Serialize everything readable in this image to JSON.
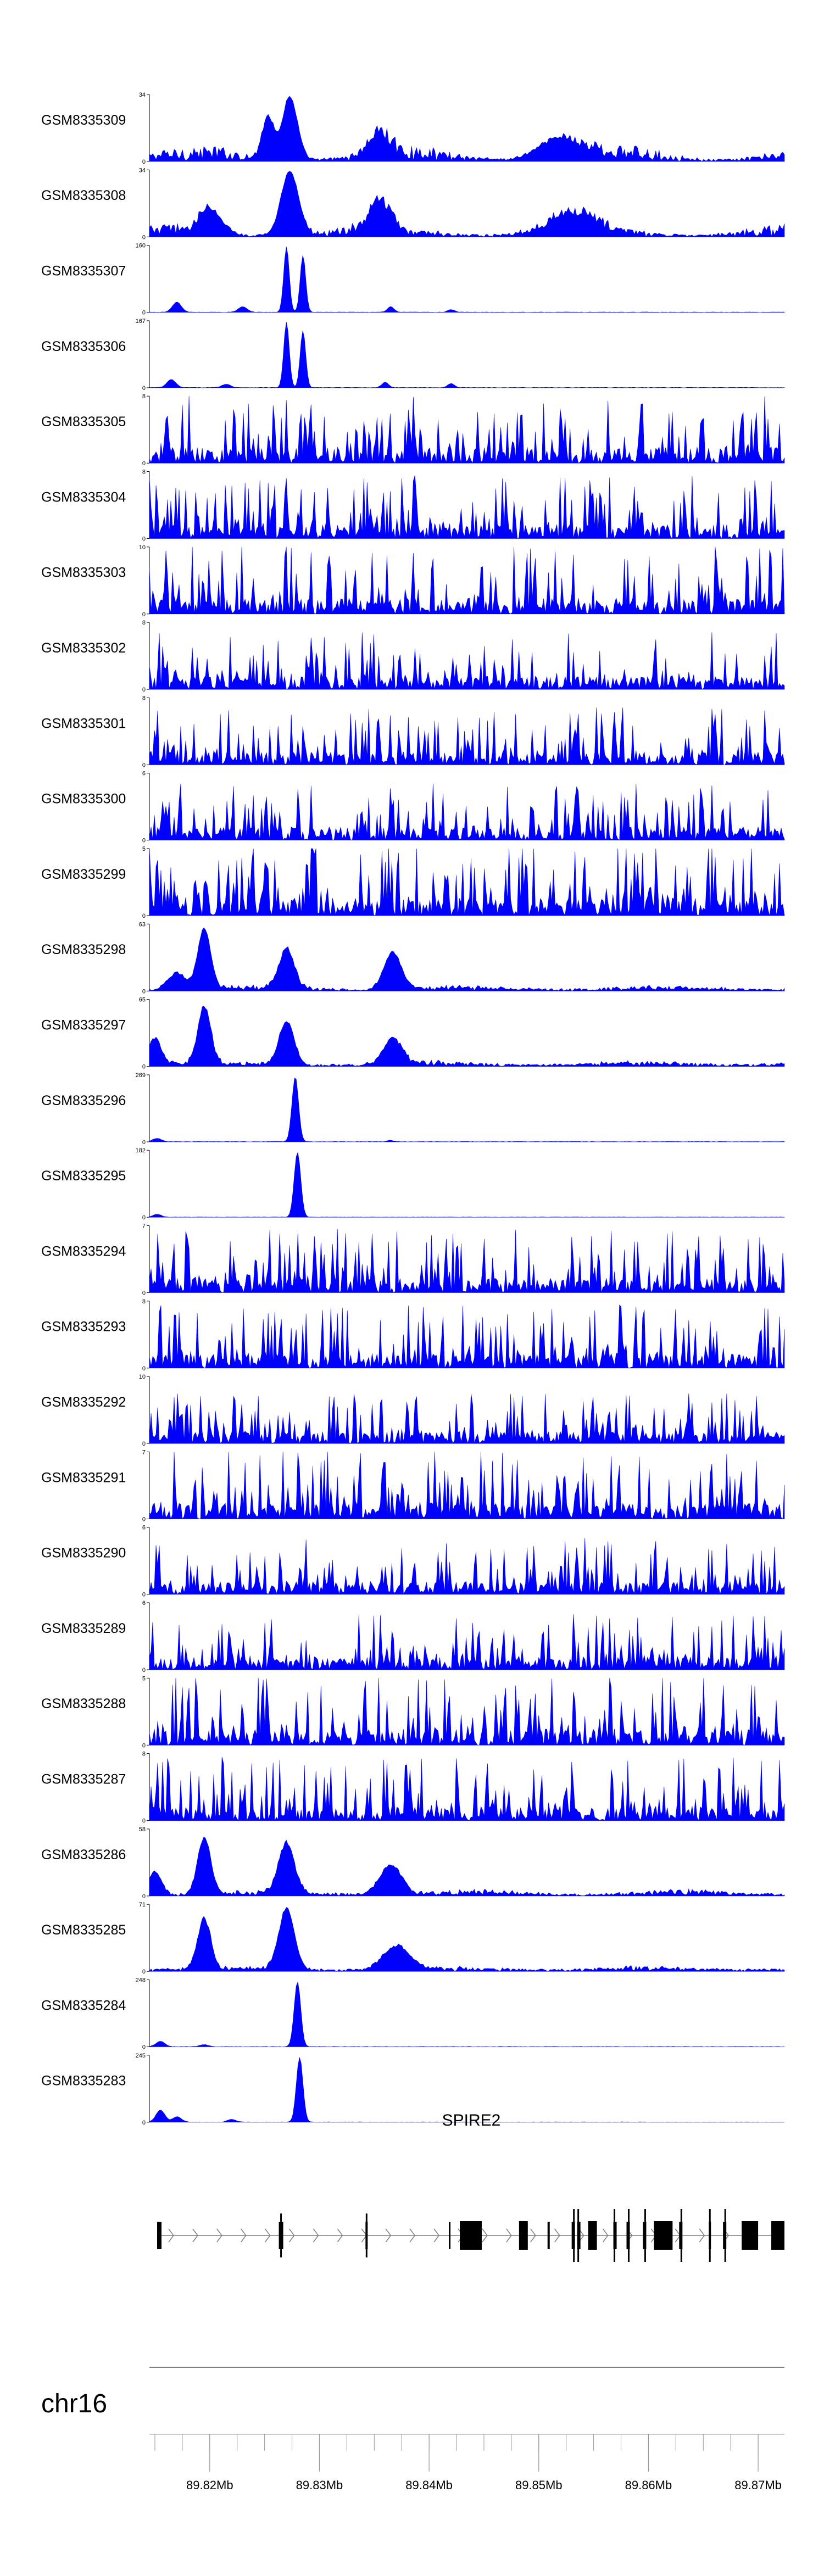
{
  "chart_data": {
    "type": "area",
    "color": "#0000ff",
    "xlim": [
      89.8145,
      89.8724
    ],
    "tracks": [
      {
        "name": "GSM8335309",
        "ymax": 34,
        "profile": "broad",
        "peaks": [
          [
            89.8253,
            0.65,
            0.0005
          ],
          [
            89.8273,
            0.95,
            0.0007
          ],
          [
            89.8355,
            0.35,
            0.001
          ],
          [
            89.852,
            0.3,
            0.002
          ]
        ],
        "noise": 0.22
      },
      {
        "name": "GSM8335308",
        "ymax": 34,
        "profile": "broad",
        "peaks": [
          [
            89.82,
            0.35,
            0.001
          ],
          [
            89.8273,
            0.95,
            0.0008
          ],
          [
            89.8355,
            0.45,
            0.001
          ],
          [
            89.853,
            0.3,
            0.002
          ]
        ],
        "noise": 0.18
      },
      {
        "name": "GSM8335307",
        "ymax": 160,
        "profile": "sharp",
        "peaks": [
          [
            89.817,
            0.15,
            0.0004
          ],
          [
            89.823,
            0.08,
            0.0004
          ],
          [
            89.827,
            0.98,
            0.00025
          ],
          [
            89.8285,
            0.85,
            0.00025
          ],
          [
            89.8365,
            0.08,
            0.0003
          ],
          [
            89.842,
            0.04,
            0.0003
          ]
        ],
        "noise": 0.0
      },
      {
        "name": "GSM8335306",
        "ymax": 167,
        "profile": "sharp",
        "peaks": [
          [
            89.8165,
            0.12,
            0.0004
          ],
          [
            89.8215,
            0.05,
            0.0004
          ],
          [
            89.827,
            0.98,
            0.00025
          ],
          [
            89.8285,
            0.85,
            0.00025
          ],
          [
            89.836,
            0.08,
            0.0003
          ],
          [
            89.842,
            0.06,
            0.0003
          ]
        ],
        "noise": 0.0
      },
      {
        "name": "GSM8335305",
        "ymax": 8,
        "profile": "noisy",
        "peaks": [],
        "noise": 0.55
      },
      {
        "name": "GSM8335304",
        "ymax": 8,
        "profile": "noisy",
        "peaks": [],
        "noise": 0.5
      },
      {
        "name": "GSM8335303",
        "ymax": 10,
        "profile": "noisy",
        "peaks": [],
        "noise": 0.55
      },
      {
        "name": "GSM8335302",
        "ymax": 8,
        "profile": "noisy",
        "peaks": [],
        "noise": 0.45
      },
      {
        "name": "GSM8335301",
        "ymax": 8,
        "profile": "noisy",
        "peaks": [],
        "noise": 0.45
      },
      {
        "name": "GSM8335300",
        "ymax": 6,
        "profile": "noisy",
        "peaks": [],
        "noise": 0.45
      },
      {
        "name": "GSM8335299",
        "ymax": 5,
        "profile": "noisy",
        "peaks": [],
        "noise": 0.6
      },
      {
        "name": "GSM8335298",
        "ymax": 63,
        "profile": "broad",
        "peaks": [
          [
            89.8195,
            0.9,
            0.0006
          ],
          [
            89.827,
            0.6,
            0.0007
          ],
          [
            89.8367,
            0.55,
            0.0008
          ],
          [
            89.817,
            0.25,
            0.0008
          ]
        ],
        "noise": 0.06
      },
      {
        "name": "GSM8335297",
        "ymax": 65,
        "profile": "broad",
        "peaks": [
          [
            89.8195,
            0.85,
            0.0006
          ],
          [
            89.827,
            0.65,
            0.0007
          ],
          [
            89.8367,
            0.4,
            0.0008
          ],
          [
            89.815,
            0.4,
            0.0006
          ]
        ],
        "noise": 0.06
      },
      {
        "name": "GSM8335296",
        "ymax": 269,
        "profile": "sharp",
        "peaks": [
          [
            89.8278,
            0.97,
            0.0003
          ],
          [
            89.8152,
            0.05,
            0.0004
          ],
          [
            89.8365,
            0.02,
            0.0003
          ]
        ],
        "noise": 0.0
      },
      {
        "name": "GSM8335295",
        "ymax": 182,
        "profile": "sharp",
        "peaks": [
          [
            89.828,
            0.97,
            0.0003
          ],
          [
            89.8152,
            0.04,
            0.0004
          ]
        ],
        "noise": 0.0
      },
      {
        "name": "GSM8335294",
        "ymax": 7,
        "profile": "noisy",
        "peaks": [],
        "noise": 0.5
      },
      {
        "name": "GSM8335293",
        "ymax": 8,
        "profile": "noisy",
        "peaks": [],
        "noise": 0.5
      },
      {
        "name": "GSM8335292",
        "ymax": 10,
        "profile": "noisy",
        "peaks": [],
        "noise": 0.4
      },
      {
        "name": "GSM8335291",
        "ymax": 7,
        "profile": "noisy",
        "peaks": [],
        "noise": 0.55
      },
      {
        "name": "GSM8335290",
        "ymax": 6,
        "profile": "noisy",
        "peaks": [],
        "noise": 0.45
      },
      {
        "name": "GSM8335289",
        "ymax": 6,
        "profile": "noisy",
        "peaks": [],
        "noise": 0.45
      },
      {
        "name": "GSM8335288",
        "ymax": 5,
        "profile": "noisy",
        "peaks": [],
        "noise": 0.55
      },
      {
        "name": "GSM8335287",
        "ymax": 8,
        "profile": "noisy",
        "peaks": [],
        "noise": 0.5
      },
      {
        "name": "GSM8335286",
        "ymax": 58,
        "profile": "broad",
        "peaks": [
          [
            89.8195,
            0.85,
            0.0006
          ],
          [
            89.827,
            0.75,
            0.0007
          ],
          [
            89.8365,
            0.45,
            0.001
          ],
          [
            89.815,
            0.35,
            0.0006
          ]
        ],
        "noise": 0.07
      },
      {
        "name": "GSM8335285",
        "ymax": 71,
        "profile": "broad",
        "peaks": [
          [
            89.8195,
            0.75,
            0.0006
          ],
          [
            89.827,
            0.9,
            0.0007
          ],
          [
            89.837,
            0.35,
            0.0012
          ]
        ],
        "noise": 0.06
      },
      {
        "name": "GSM8335284",
        "ymax": 248,
        "profile": "sharp",
        "peaks": [
          [
            89.828,
            0.97,
            0.0003
          ],
          [
            89.8155,
            0.08,
            0.0004
          ],
          [
            89.8195,
            0.03,
            0.0004
          ]
        ],
        "noise": 0.0
      },
      {
        "name": "GSM8335283",
        "ymax": 245,
        "profile": "sharp",
        "peaks": [
          [
            89.8282,
            0.97,
            0.0003
          ],
          [
            89.8155,
            0.18,
            0.0004
          ],
          [
            89.817,
            0.08,
            0.0004
          ],
          [
            89.822,
            0.04,
            0.0004
          ]
        ],
        "noise": 0.0
      }
    ],
    "gene": {
      "name": "SPIRE2",
      "strand": "+",
      "start": 89.8152,
      "end": 89.8724,
      "exons": [
        [
          89.8152,
          89.8156,
          "thin"
        ],
        [
          89.8263,
          89.8267,
          "thin"
        ],
        [
          89.8342,
          89.8344,
          "thin"
        ],
        [
          89.8418,
          89.8419,
          "thin"
        ],
        [
          89.8428,
          89.8448,
          "thick"
        ],
        [
          89.8482,
          89.849,
          "thick"
        ],
        [
          89.8508,
          89.851,
          "thin"
        ],
        [
          89.853,
          89.8533,
          "thin"
        ],
        [
          89.8535,
          89.8538,
          "thin"
        ],
        [
          89.8545,
          89.8553,
          "thick"
        ],
        [
          89.8568,
          89.8571,
          "thin"
        ],
        [
          89.858,
          89.8583,
          "thin"
        ],
        [
          89.8595,
          89.8598,
          "thin"
        ],
        [
          89.8605,
          89.8622,
          "thick"
        ],
        [
          89.8628,
          89.8631,
          "thin"
        ],
        [
          89.8655,
          89.8657,
          "thin"
        ],
        [
          89.8668,
          89.8671,
          "thin"
        ],
        [
          89.8685,
          89.87,
          "thick"
        ],
        [
          89.8712,
          89.8724,
          "thick"
        ]
      ],
      "intron_exons": [
        [
          89.8263,
          89.8266
        ],
        [
          89.834,
          89.8344
        ]
      ]
    },
    "chromosome": "chr16",
    "axis": {
      "major_ticks": [
        89.82,
        89.83,
        89.84,
        89.85,
        89.86,
        89.87
      ],
      "tick_labels": [
        "89.82Mb",
        "89.83Mb",
        "89.84Mb",
        "89.85Mb",
        "89.86Mb",
        "89.87Mb"
      ],
      "minor_step": 0.0025
    }
  }
}
